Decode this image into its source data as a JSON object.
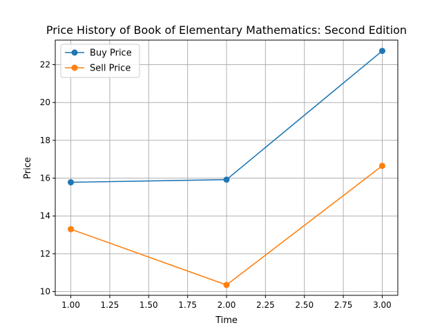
{
  "chart_data": {
    "type": "line",
    "title": "Price History of Book of Elementary Mathematics: Second Edition",
    "xlabel": "Time",
    "ylabel": "Price",
    "x": [
      1.0,
      2.0,
      3.0
    ],
    "series": [
      {
        "name": "Buy Price",
        "values": [
          15.78,
          15.92,
          22.73
        ],
        "color": "#1f77b4"
      },
      {
        "name": "Sell Price",
        "values": [
          13.3,
          10.35,
          16.65
        ],
        "color": "#ff7f0e"
      }
    ],
    "xlim": [
      0.9,
      3.1
    ],
    "ylim": [
      9.8,
      23.3
    ],
    "x_ticks": [
      "1.00",
      "1.25",
      "1.50",
      "1.75",
      "2.00",
      "2.25",
      "2.50",
      "2.75",
      "3.00"
    ],
    "y_ticks": [
      "10",
      "12",
      "14",
      "16",
      "18",
      "20",
      "22"
    ],
    "grid": true,
    "legend_position": "top-left"
  }
}
